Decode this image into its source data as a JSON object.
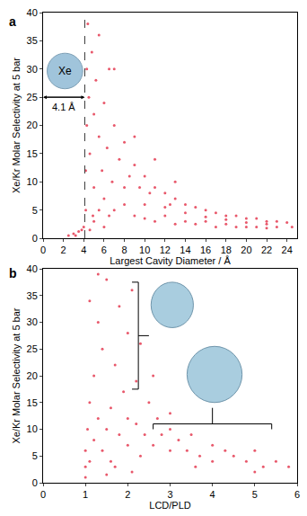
{
  "chart_data": [
    {
      "type": "scatter",
      "panel": "a",
      "x_label": "Largest Cavity Diameter / Å",
      "y_label": "Xe/Kr Molar Selectivity at 5 bar",
      "color": "#e0203a",
      "marker": "circle",
      "xlim": [
        0,
        25
      ],
      "ylim": [
        0,
        40
      ],
      "xticks": [
        0,
        2,
        4,
        6,
        8,
        10,
        12,
        14,
        16,
        18,
        20,
        22,
        24
      ],
      "yticks": [
        0,
        5,
        10,
        15,
        20,
        25,
        30,
        35,
        40
      ],
      "threshold": 4.1,
      "annotations": [
        {
          "text": "Xe"
        },
        {
          "text": "4.1 Å"
        }
      ],
      "x": [
        2.5,
        3,
        3.5,
        3.8,
        4.0,
        4.2,
        4.2,
        4.3,
        4.3,
        4.4,
        4.5,
        4.6,
        4.8,
        5.0,
        5.0,
        5.2,
        5.5,
        5.5,
        5.8,
        6,
        6,
        6.3,
        6.5,
        6.8,
        7,
        7,
        7.5,
        8,
        8,
        8.5,
        9,
        9,
        9.5,
        10,
        10,
        10.5,
        11,
        11,
        12,
        12,
        12.5,
        13,
        13,
        14,
        14,
        15,
        15,
        16,
        16,
        17,
        17,
        18,
        18,
        19,
        19,
        20,
        20,
        21,
        21,
        22,
        22,
        23,
        23,
        24,
        24.5,
        6,
        5,
        4.6,
        7,
        9,
        11,
        13,
        3.2,
        4.9,
        5.5,
        6.5,
        8,
        10,
        12,
        14,
        16,
        18,
        20,
        22
      ],
      "y": [
        0.5,
        0.8,
        1.2,
        1.5,
        2,
        5,
        12,
        20,
        30,
        38,
        25,
        15,
        33,
        22,
        9,
        28,
        18,
        36,
        12,
        24,
        7,
        16,
        30,
        10,
        20,
        5,
        14,
        17,
        6,
        11,
        13,
        4,
        9,
        11,
        3.5,
        8,
        9,
        3,
        8,
        4,
        6,
        7,
        2.5,
        6,
        3,
        5.5,
        2.5,
        5,
        3,
        4.5,
        2,
        4,
        2.5,
        4,
        2,
        3.5,
        2,
        3.5,
        2,
        3,
        1.8,
        3,
        2,
        2.8,
        2,
        2,
        3,
        1.5,
        30,
        18,
        14,
        10,
        0.5,
        4,
        5,
        4,
        9,
        6,
        5.5,
        4.5,
        3.8,
        3.3,
        2.8,
        2.5
      ]
    },
    {
      "type": "scatter",
      "panel": "b",
      "x_label": "LCD/PLD",
      "y_label": "Xe/Kr Molar Selectivity at 5 bar",
      "color": "#e0203a",
      "marker": "circle",
      "xlim": [
        0,
        6
      ],
      "ylim": [
        0,
        40
      ],
      "xticks": [
        0,
        1,
        2,
        3,
        4,
        5,
        6
      ],
      "yticks": [
        0,
        5,
        10,
        15,
        20,
        25,
        30,
        35,
        40
      ],
      "x": [
        1,
        1,
        1,
        1.05,
        1.1,
        1.1,
        1.2,
        1.2,
        1.3,
        1.3,
        1.4,
        1.4,
        1.5,
        1.5,
        1.6,
        1.6,
        1.7,
        1.8,
        1.8,
        1.9,
        2,
        2,
        2,
        2.1,
        2.2,
        2.2,
        2.3,
        2.3,
        2.4,
        2.5,
        2.6,
        2.7,
        2.8,
        3,
        3,
        3.2,
        3.4,
        3.5,
        3.7,
        4,
        4,
        4.3,
        4.5,
        4.8,
        5,
        5.2,
        5.5,
        5.8,
        1.1,
        1.3,
        1.7,
        2.6,
        3,
        2.1,
        1.5,
        3.6,
        5
      ],
      "y": [
        1,
        3,
        6,
        10,
        15,
        4,
        8,
        20,
        12,
        30,
        6,
        25,
        10,
        38,
        14,
        4,
        22,
        9,
        33,
        17,
        7,
        12,
        28,
        36,
        11,
        19,
        5,
        26,
        9,
        15,
        7,
        12,
        9,
        6,
        10,
        8,
        6,
        9,
        5,
        7,
        4,
        6,
        5,
        4,
        6,
        3,
        4,
        3,
        34,
        39,
        3,
        20,
        13,
        2,
        1.5,
        3,
        2
      ]
    }
  ]
}
